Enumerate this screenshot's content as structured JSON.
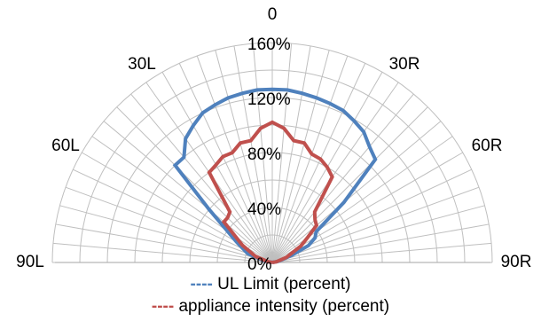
{
  "chart_data": {
    "type": "polar-line",
    "angle_labels": [
      {
        "angle": 0,
        "text": "0"
      },
      {
        "angle": -30,
        "text": "30L"
      },
      {
        "angle": 30,
        "text": "30R"
      },
      {
        "angle": -60,
        "text": "60L"
      },
      {
        "angle": 60,
        "text": "60R"
      },
      {
        "angle": -90,
        "text": "90L"
      },
      {
        "angle": 90,
        "text": "90R"
      }
    ],
    "radial_ticks": [
      {
        "value": 0,
        "text": "0%"
      },
      {
        "value": 40,
        "text": "40%"
      },
      {
        "value": 80,
        "text": "80%"
      },
      {
        "value": 120,
        "text": "120%"
      },
      {
        "value": 160,
        "text": "160%"
      }
    ],
    "rmax": 160,
    "grid": true,
    "series": [
      {
        "name": "UL Limit (percent)",
        "color": "#4f81bd",
        "points": [
          [
            -90,
            0
          ],
          [
            -80,
            5
          ],
          [
            -70,
            19
          ],
          [
            -60,
            30
          ],
          [
            -50,
            60
          ],
          [
            -45,
            100
          ],
          [
            -40,
            100
          ],
          [
            -35,
            110
          ],
          [
            -30,
            115
          ],
          [
            -25,
            120
          ],
          [
            -20,
            122
          ],
          [
            -15,
            124
          ],
          [
            -10,
            125
          ],
          [
            -5,
            126
          ],
          [
            0,
            126
          ],
          [
            5,
            126
          ],
          [
            10,
            125
          ],
          [
            15,
            124
          ],
          [
            20,
            123
          ],
          [
            25,
            122
          ],
          [
            30,
            119
          ],
          [
            35,
            116
          ],
          [
            40,
            110
          ],
          [
            45,
            106
          ],
          [
            50,
            68
          ],
          [
            55,
            39
          ],
          [
            60,
            36
          ],
          [
            65,
            29
          ],
          [
            70,
            15
          ],
          [
            80,
            4
          ],
          [
            90,
            0
          ]
        ]
      },
      {
        "name": "appliance intensity (percent)",
        "color": "#c0504d",
        "points": [
          [
            -90,
            0
          ],
          [
            -80,
            3
          ],
          [
            -70,
            13
          ],
          [
            -60,
            25
          ],
          [
            -50,
            46
          ],
          [
            -45,
            46
          ],
          [
            -40,
            48
          ],
          [
            -35,
            80
          ],
          [
            -30,
            82
          ],
          [
            -25,
            85
          ],
          [
            -20,
            85
          ],
          [
            -15,
            90
          ],
          [
            -10,
            90
          ],
          [
            -5,
            98
          ],
          [
            0,
            102
          ],
          [
            5,
            98
          ],
          [
            10,
            90
          ],
          [
            15,
            90
          ],
          [
            20,
            84
          ],
          [
            25,
            83
          ],
          [
            30,
            80
          ],
          [
            35,
            76
          ],
          [
            40,
            48
          ],
          [
            45,
            44
          ],
          [
            50,
            42
          ],
          [
            55,
            31
          ],
          [
            60,
            24
          ],
          [
            70,
            11
          ],
          [
            80,
            3
          ],
          [
            90,
            0
          ]
        ]
      }
    ]
  },
  "legend": {
    "dash": "----",
    "ul_label": "UL Limit (percent)",
    "appliance_label": "appliance intensity (percent)"
  }
}
